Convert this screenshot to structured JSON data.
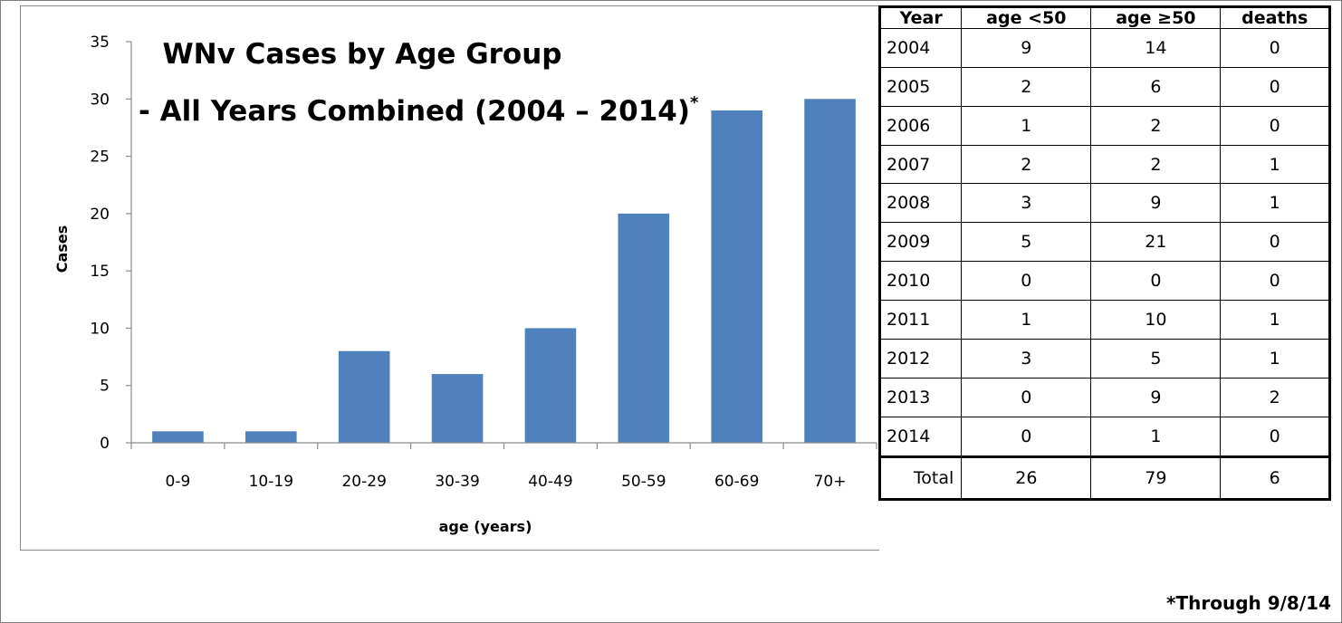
{
  "chart_data": {
    "type": "bar",
    "title": "WNv Cases by Age Group",
    "subtitle": "- All Years Combined (2004 – 2014)",
    "title_marker": "*",
    "categories": [
      "0-9",
      "10-19",
      "20-29",
      "30-39",
      "40-49",
      "50-59",
      "60-69",
      "70+"
    ],
    "values": [
      1,
      1,
      8,
      6,
      10,
      20,
      29,
      30
    ],
    "xlabel": "age (years)",
    "ylabel": "Cases",
    "ylim": [
      0,
      35
    ],
    "yticks": [
      0,
      5,
      10,
      15,
      20,
      25,
      30,
      35
    ],
    "bar_color": "#4f81bd",
    "grid": false,
    "legend": "none"
  },
  "table": {
    "headers": [
      "Year",
      "age <50",
      "age ≥50",
      "deaths"
    ],
    "rows": [
      [
        "2004",
        "9",
        "14",
        "0"
      ],
      [
        "2005",
        "2",
        "6",
        "0"
      ],
      [
        "2006",
        "1",
        "2",
        "0"
      ],
      [
        "2007",
        "2",
        "2",
        "1"
      ],
      [
        "2008",
        "3",
        "9",
        "1"
      ],
      [
        "2009",
        "5",
        "21",
        "0"
      ],
      [
        "2010",
        "0",
        "0",
        "0"
      ],
      [
        "2011",
        "1",
        "10",
        "1"
      ],
      [
        "2012",
        "3",
        "5",
        "1"
      ],
      [
        "2013",
        "0",
        "9",
        "2"
      ],
      [
        "2014",
        "0",
        "1",
        "0"
      ]
    ],
    "total": [
      "Total",
      "26",
      "79",
      "6"
    ]
  },
  "footnote": "*Through 9/8/14"
}
